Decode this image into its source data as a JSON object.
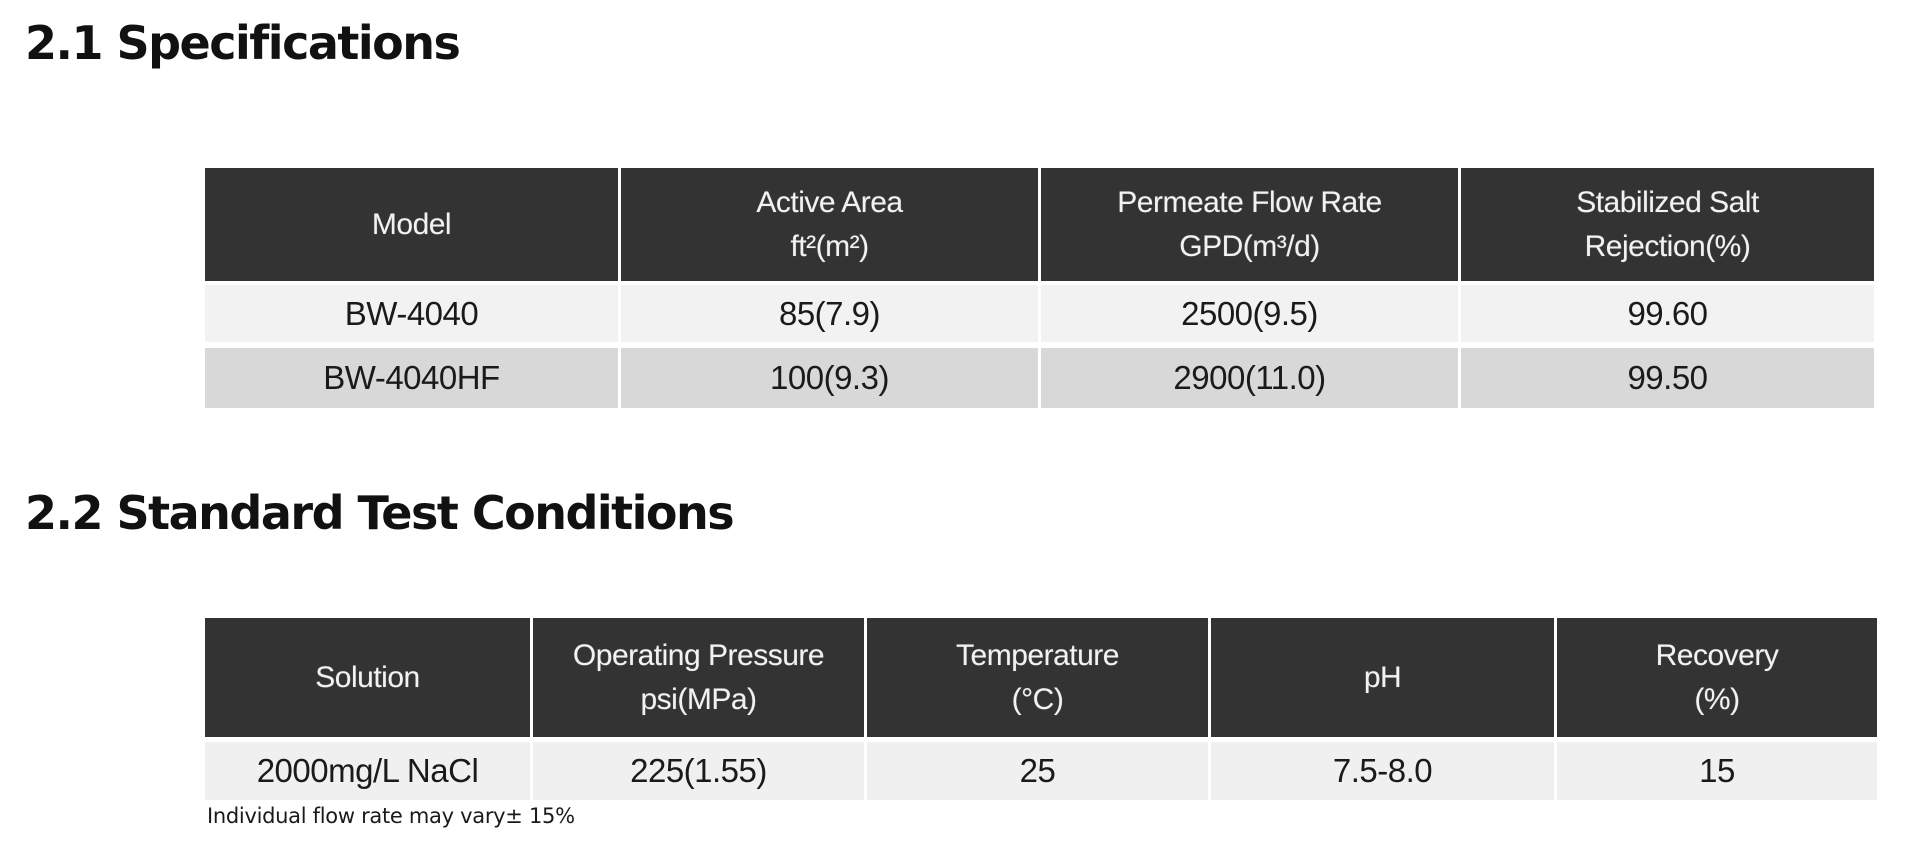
{
  "sections": {
    "specifications": {
      "title": "2.1 Specifications",
      "table": {
        "headers": [
          {
            "line1": "Model"
          },
          {
            "line1": "Active Area",
            "line2": "ft²(m²)"
          },
          {
            "line1": "Permeate Flow Rate",
            "line2": "GPD(m³/d)"
          },
          {
            "line1": "Stabilized Salt",
            "line2": "Rejection(%)"
          }
        ],
        "rows": [
          [
            "BW-4040",
            "85(7.9)",
            "2500(9.5)",
            "99.60"
          ],
          [
            "BW-4040HF",
            "100(9.3)",
            "2900(11.0)",
            "99.50"
          ]
        ]
      }
    },
    "test_conditions": {
      "title": "2.2 Standard Test Conditions",
      "table": {
        "headers": [
          {
            "line1": "Solution"
          },
          {
            "line1": "Operating Pressure",
            "line2": "psi(MPa)"
          },
          {
            "line1": "Temperature",
            "line2": "(°C)"
          },
          {
            "line1": "pH"
          },
          {
            "line1": "Recovery",
            "line2": "(%)"
          }
        ],
        "rows": [
          [
            "2000mg/L NaCl",
            "225(1.55)",
            "25",
            "7.5-8.0",
            "15"
          ]
        ]
      },
      "note": "Individual flow rate may vary± 15%"
    }
  },
  "colors": {
    "page_bg": "#ffffff",
    "heading_text": "#111111",
    "header_bg": "#333333",
    "header_text": "#f2f2f2",
    "row_light": "#f2f2f2",
    "row_gray": "#d8d8d8",
    "row_cond": "#f0f0f0",
    "text": "#1a1a1a"
  }
}
